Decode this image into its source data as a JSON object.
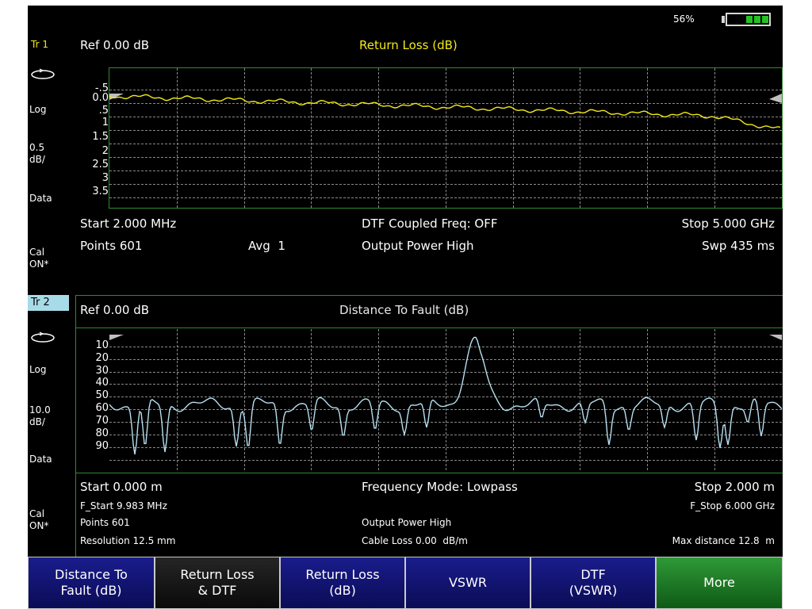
{
  "status": {
    "battery_percent": "56%",
    "battery_level": 0.6
  },
  "trace1": {
    "badge": "Tr 1",
    "ref": "Ref 0.00 dB",
    "title": "Return Loss (dB)",
    "format": "Log",
    "scale": [
      "0.5",
      "dB/"
    ],
    "mem": "Data",
    "cal": [
      "Cal",
      "ON*"
    ],
    "y_ticks": [
      "-.5",
      "0.0",
      ".5",
      "1",
      "1.5",
      "2",
      "2.5",
      "3",
      "3.5"
    ],
    "start": "Start 2.000 MHz",
    "stop": "Stop 5.000 GHz",
    "dtf_coupled": "DTF Coupled Freq: OFF",
    "points": "Points 601",
    "avg": "Avg  1",
    "output_power": "Output Power High",
    "sweep": "Swp 435 ms"
  },
  "trace2": {
    "badge": "Tr 2",
    "ref": "Ref 0.00 dB",
    "title": "Distance To Fault (dB)",
    "format": "Log",
    "scale": [
      "10.0",
      "dB/"
    ],
    "mem": "Data",
    "cal": [
      "Cal",
      "ON*"
    ],
    "y_ticks": [
      "10",
      "20",
      "30",
      "40",
      "50",
      "60",
      "70",
      "80",
      "90"
    ],
    "start": "Start 0.000 m",
    "stop": "Stop 2.000 m",
    "freq_mode": "Frequency Mode: Lowpass",
    "f_start": "F_Start 9.983 MHz",
    "f_stop": "F_Stop 6.000 GHz",
    "points": "Points 601",
    "output_power": "Output Power High",
    "resolution": "Resolution 12.5 mm",
    "cable_loss": "Cable Loss 0.00  dB/m",
    "max_distance": "Max distance 12.8  m"
  },
  "colors": {
    "trace1": "#f2ea1a",
    "trace2": "#b7dff0",
    "grid_border": "#2f8a2f",
    "softkey_active": "#1a1c8c",
    "softkey_green": "#2e9a36"
  },
  "softkeys": [
    {
      "lines": [
        "Distance To",
        "Fault (dB)"
      ],
      "style": "blue"
    },
    {
      "lines": [
        "Return Loss",
        "& DTF"
      ],
      "style": "dark"
    },
    {
      "lines": [
        "Return Loss",
        "(dB)"
      ],
      "style": "blue"
    },
    {
      "lines": [
        "VSWR",
        ""
      ],
      "style": "blue"
    },
    {
      "lines": [
        "DTF",
        "(VSWR)"
      ],
      "style": "blue"
    },
    {
      "lines": [
        "More",
        ""
      ],
      "style": "green"
    }
  ]
}
